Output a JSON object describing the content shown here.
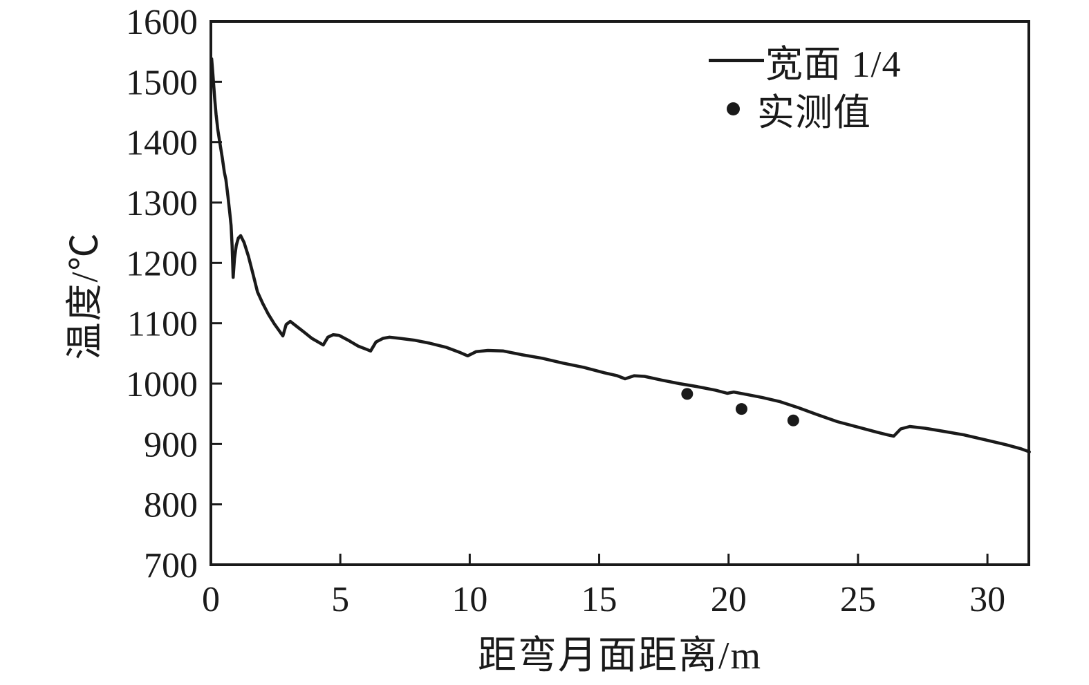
{
  "figure": {
    "background": "#ffffff",
    "ink_color": "#1a1a1a"
  },
  "chart_data": {
    "type": "line",
    "title": "",
    "xlabel": "距弯月面距离/m",
    "ylabel": "温度/℃",
    "xlim": [
      0,
      31.6
    ],
    "ylim": [
      700,
      1600
    ],
    "x_ticks": [
      0,
      5,
      10,
      15,
      20,
      25,
      30
    ],
    "y_ticks": [
      700,
      800,
      900,
      1000,
      1100,
      1200,
      1300,
      1400,
      1500,
      1600
    ],
    "grid": false,
    "legend_position": "upper-right-inside",
    "series": [
      {
        "name": "宽面 1/4",
        "type": "line",
        "points": [
          [
            0.03,
            1538
          ],
          [
            0.07,
            1517
          ],
          [
            0.1,
            1500
          ],
          [
            0.15,
            1471
          ],
          [
            0.2,
            1446
          ],
          [
            0.27,
            1420
          ],
          [
            0.35,
            1398
          ],
          [
            0.44,
            1374
          ],
          [
            0.52,
            1350
          ],
          [
            0.58,
            1338
          ],
          [
            0.66,
            1310
          ],
          [
            0.73,
            1283
          ],
          [
            0.78,
            1262
          ],
          [
            0.82,
            1228
          ],
          [
            0.86,
            1176
          ],
          [
            0.91,
            1207
          ],
          [
            0.98,
            1229
          ],
          [
            1.06,
            1241
          ],
          [
            1.15,
            1245
          ],
          [
            1.28,
            1234
          ],
          [
            1.45,
            1211
          ],
          [
            1.62,
            1183
          ],
          [
            1.8,
            1152
          ],
          [
            2.0,
            1133
          ],
          [
            2.22,
            1115
          ],
          [
            2.45,
            1099
          ],
          [
            2.65,
            1087
          ],
          [
            2.78,
            1079
          ],
          [
            2.91,
            1098
          ],
          [
            3.07,
            1103
          ],
          [
            3.28,
            1096
          ],
          [
            3.58,
            1086
          ],
          [
            3.9,
            1075
          ],
          [
            4.18,
            1068
          ],
          [
            4.34,
            1064
          ],
          [
            4.52,
            1077
          ],
          [
            4.72,
            1081
          ],
          [
            4.95,
            1080
          ],
          [
            5.3,
            1072
          ],
          [
            5.7,
            1062
          ],
          [
            6.0,
            1057
          ],
          [
            6.17,
            1054
          ],
          [
            6.38,
            1069
          ],
          [
            6.65,
            1075
          ],
          [
            6.9,
            1077
          ],
          [
            7.3,
            1075
          ],
          [
            7.85,
            1072
          ],
          [
            8.45,
            1067
          ],
          [
            9.1,
            1060
          ],
          [
            9.6,
            1052
          ],
          [
            9.92,
            1046
          ],
          [
            10.25,
            1053
          ],
          [
            10.7,
            1055
          ],
          [
            11.3,
            1054
          ],
          [
            12.0,
            1048
          ],
          [
            12.8,
            1042
          ],
          [
            13.6,
            1034
          ],
          [
            14.4,
            1027
          ],
          [
            15.2,
            1018
          ],
          [
            15.7,
            1013
          ],
          [
            16.0,
            1008
          ],
          [
            16.35,
            1013
          ],
          [
            16.75,
            1012
          ],
          [
            17.4,
            1006
          ],
          [
            18.1,
            1000
          ],
          [
            18.8,
            995
          ],
          [
            19.5,
            989
          ],
          [
            19.95,
            984
          ],
          [
            20.2,
            986
          ],
          [
            20.7,
            982
          ],
          [
            21.3,
            977
          ],
          [
            22.0,
            970
          ],
          [
            22.7,
            960
          ],
          [
            23.4,
            949
          ],
          [
            24.2,
            937
          ],
          [
            25.0,
            928
          ],
          [
            25.7,
            920
          ],
          [
            26.15,
            915
          ],
          [
            26.38,
            913
          ],
          [
            26.65,
            925
          ],
          [
            27.0,
            929
          ],
          [
            27.6,
            926
          ],
          [
            28.3,
            921
          ],
          [
            29.1,
            915
          ],
          [
            29.9,
            907
          ],
          [
            30.7,
            899
          ],
          [
            31.3,
            892
          ],
          [
            31.62,
            887
          ]
        ]
      },
      {
        "name": "实测值",
        "type": "scatter",
        "points": [
          [
            18.4,
            983
          ],
          [
            20.5,
            958
          ],
          [
            22.5,
            939
          ]
        ]
      }
    ]
  },
  "legend": {
    "items": [
      {
        "label": "宽面 1/4",
        "marker": "line"
      },
      {
        "label": "实测值",
        "marker": "dot"
      }
    ]
  }
}
